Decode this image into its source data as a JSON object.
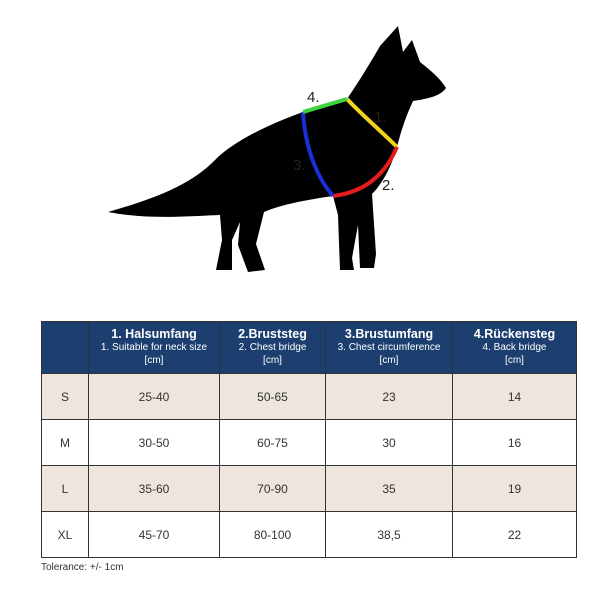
{
  "diagram": {
    "labels": [
      "1.",
      "2.",
      "3.",
      "4."
    ]
  },
  "table": {
    "columns": [
      {
        "title": "1. Halsumfang",
        "subtitle": "1. Suitable for neck size",
        "unit": "[cm]"
      },
      {
        "title": "2.Bruststeg",
        "subtitle": "2. Chest bridge",
        "unit": "[cm]"
      },
      {
        "title": "3.Brustumfang",
        "subtitle": "3. Chest circumference",
        "unit": "[cm]"
      },
      {
        "title": "4.Rückensteg",
        "subtitle": "4. Back bridge",
        "unit": "[cm]"
      }
    ],
    "rows": [
      [
        "S",
        "25-40",
        "50-65",
        "23",
        "14"
      ],
      [
        "M",
        "30-50",
        "60-75",
        "30",
        "16"
      ],
      [
        "L",
        "35-60",
        "70-90",
        "35",
        "19"
      ],
      [
        "XL",
        "45-70",
        "80-100",
        "38,5",
        "22"
      ]
    ]
  },
  "footer": "Tolerance: +/- 1cm"
}
